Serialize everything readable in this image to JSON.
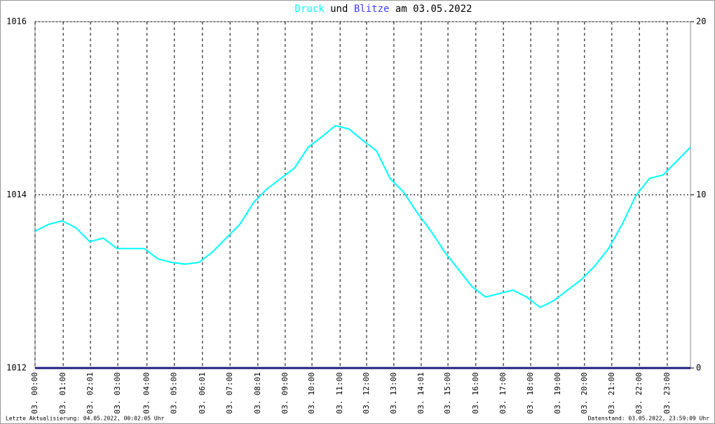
{
  "chart_data": {
    "type": "line",
    "title": [
      "Druck",
      "und",
      "Blitze",
      "am 03.05.2022"
    ],
    "footer_left": "Letzte Aktualisierung: 04.05.2022, 00:02:05 Uhr",
    "footer_right": "Datenstand: 03.05.2022, 23:59:09 Uhr",
    "xlim": [
      0,
      24
    ],
    "xticks": [
      {
        "value": 0,
        "label": "03. 00:00"
      },
      {
        "value": 1.03,
        "label": "03. 01:00"
      },
      {
        "value": 2.03,
        "label": "03. 02:01"
      },
      {
        "value": 3.03,
        "label": "03. 03:00"
      },
      {
        "value": 4.1,
        "label": "03. 04:00"
      },
      {
        "value": 5.1,
        "label": "03. 05:00"
      },
      {
        "value": 6.13,
        "label": "03. 06:01"
      },
      {
        "value": 7.14,
        "label": "03. 07:00"
      },
      {
        "value": 8.16,
        "label": "03. 08:01"
      },
      {
        "value": 9.16,
        "label": "03. 09:00"
      },
      {
        "value": 10.14,
        "label": "03. 10:00"
      },
      {
        "value": 11.17,
        "label": "03. 11:00"
      },
      {
        "value": 12.14,
        "label": "03. 12:00"
      },
      {
        "value": 13.14,
        "label": "03. 13:00"
      },
      {
        "value": 14.14,
        "label": "03. 14:01"
      },
      {
        "value": 15.12,
        "label": "03. 15:00"
      },
      {
        "value": 16.14,
        "label": "03. 16:00"
      },
      {
        "value": 17.15,
        "label": "03. 17:00"
      },
      {
        "value": 18.15,
        "label": "03. 18:00"
      },
      {
        "value": 19.15,
        "label": "03. 19:00"
      },
      {
        "value": 20.12,
        "label": "03. 20:00"
      },
      {
        "value": 21.12,
        "label": "03. 21:00"
      },
      {
        "value": 22.13,
        "label": "03. 22:00"
      },
      {
        "value": 23.15,
        "label": "03. 23:00"
      }
    ],
    "ylim": [
      1012,
      1016
    ],
    "yticks": [
      1012,
      1014,
      1016
    ],
    "y2lim": [
      0,
      20
    ],
    "y2ticks": [
      0,
      10,
      20
    ],
    "grid": true,
    "series": [
      {
        "name": "Druck",
        "color": "#00ffff",
        "x": [
          0,
          0.5,
          1,
          1.5,
          2,
          2.5,
          3,
          3.5,
          4,
          4.5,
          5,
          5.5,
          6,
          6.5,
          7,
          7.5,
          8,
          8.5,
          9,
          9.5,
          10,
          10.5,
          11,
          11.5,
          12,
          12.5,
          13,
          13.5,
          14,
          14.5,
          15,
          15.5,
          16,
          16.5,
          17,
          17.5,
          18,
          18.5,
          19,
          19.5,
          20,
          20.5,
          21,
          21.5,
          22,
          22.5,
          23,
          23.5,
          24
        ],
        "values": [
          1013.58,
          1013.66,
          1013.7,
          1013.62,
          1013.46,
          1013.5,
          1013.38,
          1013.38,
          1013.38,
          1013.26,
          1013.22,
          1013.2,
          1013.22,
          1013.34,
          1013.5,
          1013.66,
          1013.91,
          1014.07,
          1014.19,
          1014.31,
          1014.55,
          1014.67,
          1014.8,
          1014.76,
          1014.63,
          1014.51,
          1014.19,
          1014.03,
          1013.79,
          1013.58,
          1013.34,
          1013.14,
          1012.94,
          1012.82,
          1012.86,
          1012.9,
          1012.82,
          1012.7,
          1012.78,
          1012.9,
          1013.02,
          1013.18,
          1013.38,
          1013.66,
          1013.99,
          1014.19,
          1014.23,
          1014.39,
          1014.55
        ]
      },
      {
        "name": "Blitze",
        "color": "#1c1c80",
        "axis": "y2",
        "x": [
          0,
          24
        ],
        "values": [
          0,
          0
        ]
      }
    ]
  }
}
